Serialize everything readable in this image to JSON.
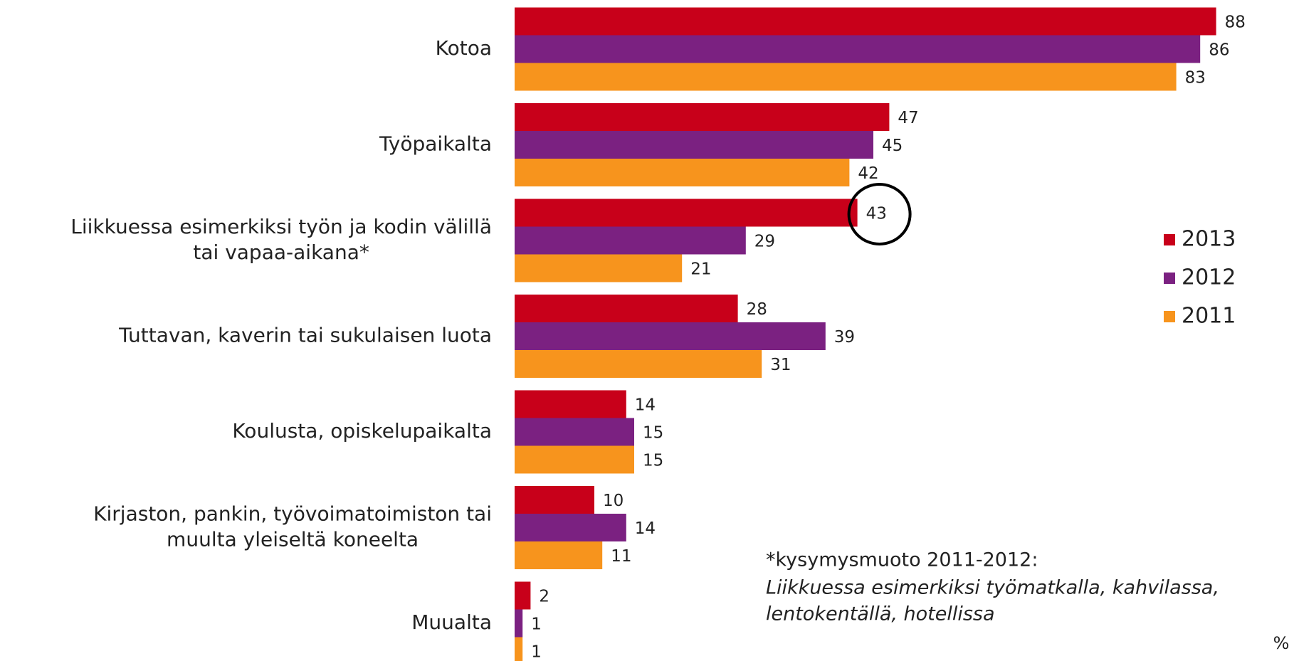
{
  "chart_data": {
    "type": "barh",
    "categories": [
      [
        "Kotoa"
      ],
      [
        "Työpaikalta"
      ],
      [
        "Liikkuessa esimerkiksi työn ja kodin välillä",
        "tai vapaa-aikana*"
      ],
      [
        "Tuttavan, kaverin tai sukulaisen luota"
      ],
      [
        "Koulusta, opiskelupaikalta"
      ],
      [
        "Kirjaston, pankin, työvoimatoimiston tai",
        "muulta yleiseltä koneelta"
      ],
      [
        "Muualta"
      ]
    ],
    "series": [
      {
        "name": "2013",
        "color": "#c8001a",
        "values": [
          88,
          47,
          43,
          28,
          14,
          10,
          2
        ]
      },
      {
        "name": "2012",
        "color": "#7b2181",
        "values": [
          86,
          45,
          29,
          39,
          15,
          14,
          1
        ]
      },
      {
        "name": "2011",
        "color": "#f7941d",
        "values": [
          83,
          42,
          21,
          31,
          15,
          11,
          1
        ]
      }
    ],
    "note": "*kysymysmuoto 2011-2012:",
    "note_italic": [
      "Liikkuessa esimerkiksi työmatkalla, kahvilassa,",
      "lentokentällä, hotellissa"
    ],
    "unit_label": "%",
    "legend": "right"
  }
}
